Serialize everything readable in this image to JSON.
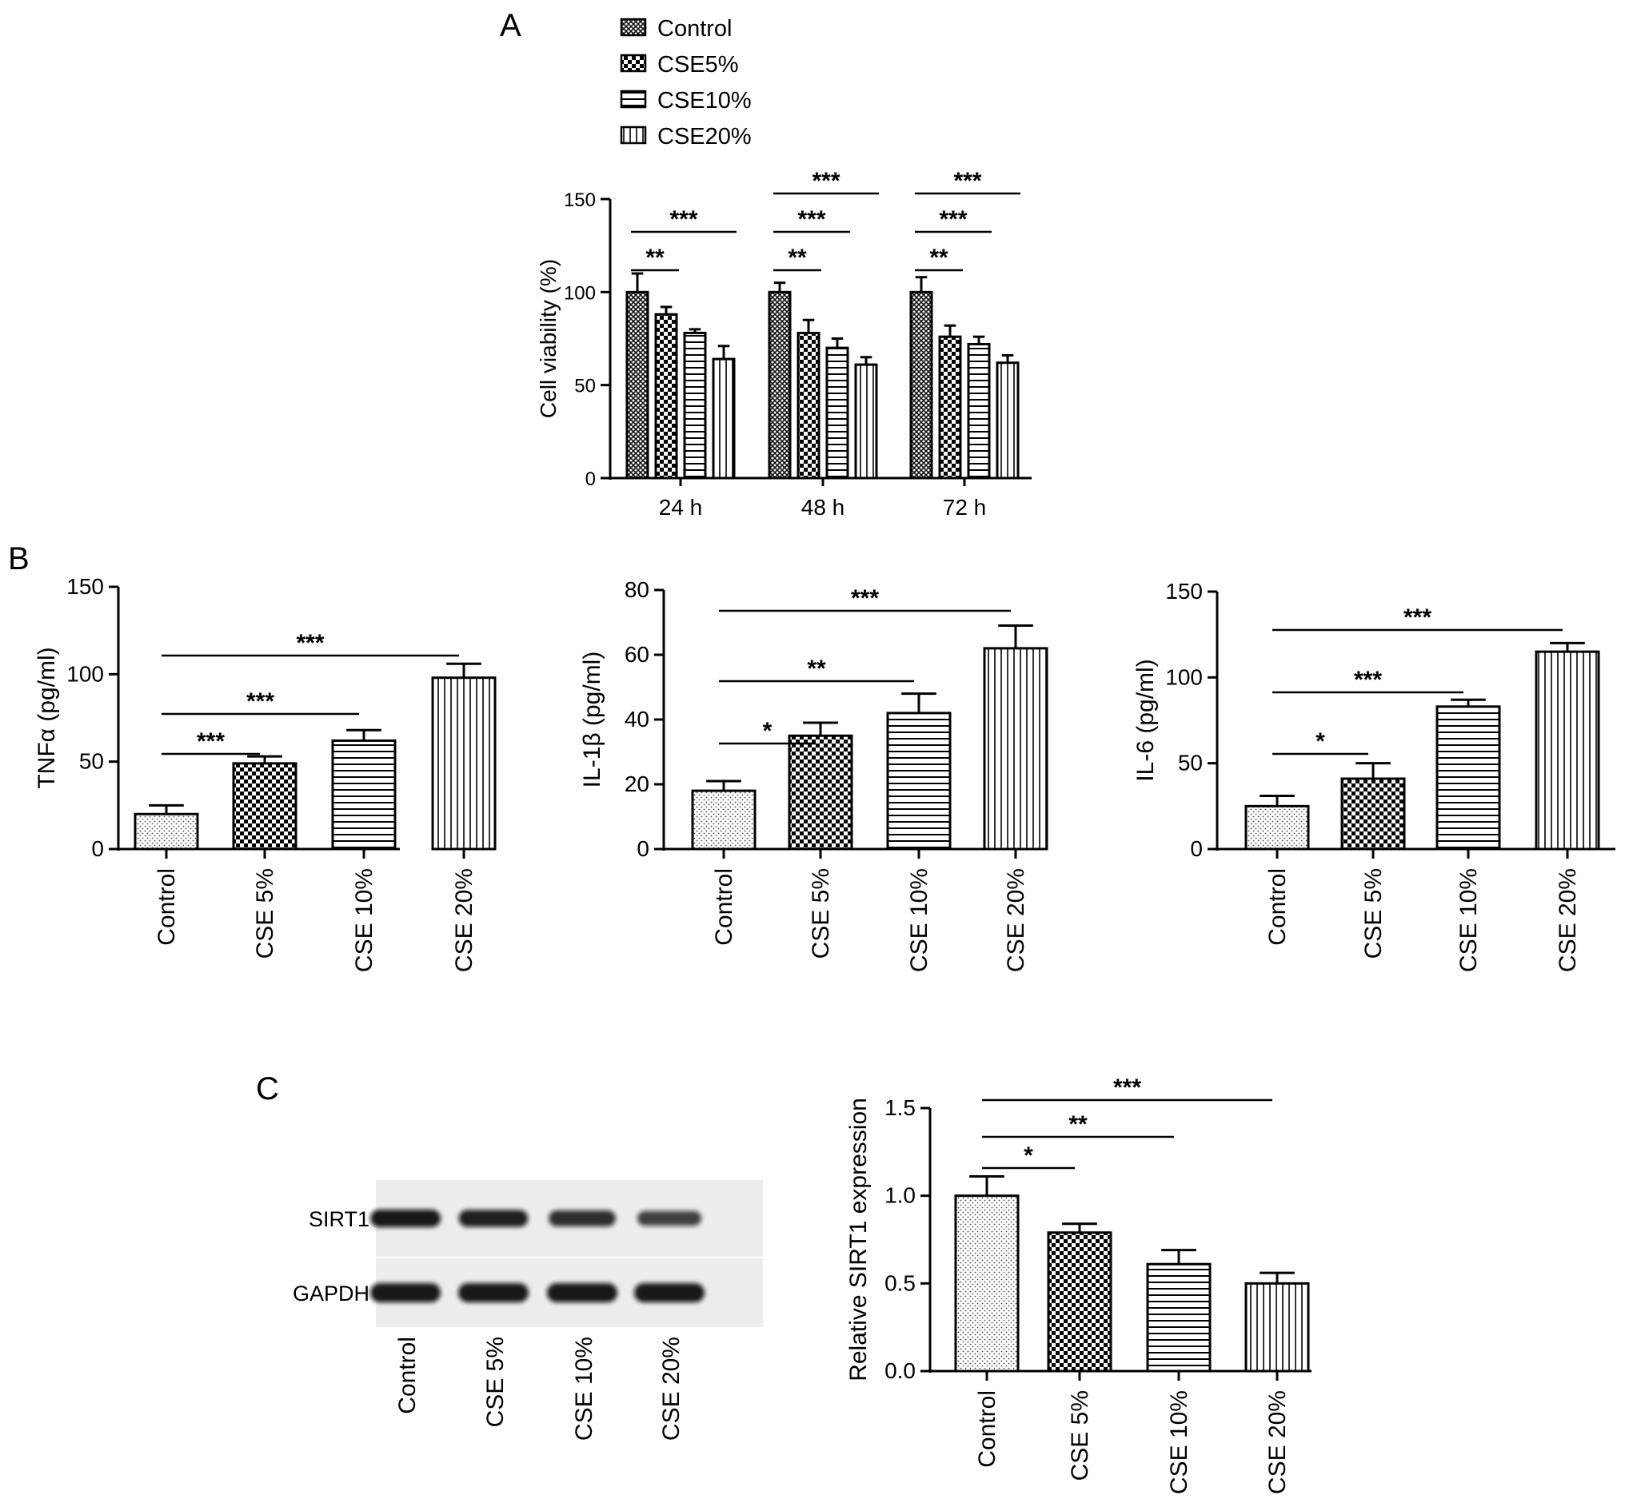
{
  "panels": {
    "A": "A",
    "B": "B",
    "C": "C"
  },
  "blot": {
    "bands": [
      "SIRT1",
      "GAPDH"
    ],
    "lanes": [
      "Control",
      "CSE 5%",
      "CSE 10%",
      "CSE 20%"
    ],
    "sirt1_band_intensity": [
      1.0,
      0.92,
      0.75,
      0.55
    ],
    "gapdh_band_intensity": [
      1.0,
      1.0,
      1.0,
      1.0
    ]
  },
  "chart_data": [
    {
      "id": "A",
      "type": "bar",
      "categories": [
        "24 h",
        "48 h",
        "72 h"
      ],
      "series": [
        {
          "name": "Control",
          "values": [
            100,
            100,
            100
          ],
          "errors": [
            10,
            5,
            8
          ],
          "pattern": "crosshatch"
        },
        {
          "name": "CSE5%",
          "values": [
            88,
            78,
            76
          ],
          "errors": [
            4,
            7,
            6
          ],
          "pattern": "checker"
        },
        {
          "name": "CSE10%",
          "values": [
            78,
            70,
            72
          ],
          "errors": [
            2,
            5,
            4
          ],
          "pattern": "horizontal"
        },
        {
          "name": "CSE20%",
          "values": [
            64,
            61,
            62
          ],
          "errors": [
            7,
            4,
            4
          ],
          "pattern": "vertical"
        }
      ],
      "xlabel": "",
      "ylabel": "Cell viability (%)",
      "ylim": [
        0,
        150
      ],
      "yticks": [
        0,
        50,
        100,
        150
      ],
      "legend": "top",
      "grid": false,
      "significance": [
        {
          "group": 0,
          "from": 0,
          "to": 1,
          "label": "**"
        },
        {
          "group": 0,
          "from": 0,
          "to": 3,
          "label": "***"
        },
        {
          "group": 1,
          "from": 0,
          "to": 1,
          "label": "**"
        },
        {
          "group": 1,
          "from": 0,
          "to": 2,
          "label": "***"
        },
        {
          "group": 1,
          "from": 0,
          "to": 3,
          "label": "***"
        },
        {
          "group": 2,
          "from": 0,
          "to": 1,
          "label": "**"
        },
        {
          "group": 2,
          "from": 0,
          "to": 2,
          "label": "***"
        },
        {
          "group": 2,
          "from": 0,
          "to": 3,
          "label": "***"
        }
      ]
    },
    {
      "id": "B1",
      "type": "bar",
      "categories": [
        "Control",
        "CSE 5%",
        "CSE 10%",
        "CSE 20%"
      ],
      "values": [
        20,
        49,
        62,
        98
      ],
      "errors": [
        5,
        4,
        6,
        8
      ],
      "ylabel": "TNFα (pg/ml)",
      "ylim": [
        0,
        150
      ],
      "yticks": [
        0,
        50,
        100,
        150
      ],
      "grid": false,
      "significance": [
        {
          "from": 0,
          "to": 1,
          "label": "***"
        },
        {
          "from": 0,
          "to": 2,
          "label": "***"
        },
        {
          "from": 0,
          "to": 3,
          "label": "***"
        }
      ]
    },
    {
      "id": "B2",
      "type": "bar",
      "categories": [
        "Control",
        "CSE 5%",
        "CSE 10%",
        "CSE 20%"
      ],
      "values": [
        18,
        35,
        42,
        62
      ],
      "errors": [
        3,
        4,
        6,
        7
      ],
      "ylabel": "IL-1β (pg/ml)",
      "ylim": [
        0,
        80
      ],
      "yticks": [
        0,
        20,
        40,
        60,
        80
      ],
      "grid": false,
      "significance": [
        {
          "from": 0,
          "to": 1,
          "label": "*"
        },
        {
          "from": 0,
          "to": 2,
          "label": "**"
        },
        {
          "from": 0,
          "to": 3,
          "label": "***"
        }
      ]
    },
    {
      "id": "B3",
      "type": "bar",
      "categories": [
        "Control",
        "CSE 5%",
        "CSE 10%",
        "CSE 20%"
      ],
      "values": [
        25,
        41,
        83,
        115
      ],
      "errors": [
        6,
        9,
        4,
        5
      ],
      "ylabel": "IL-6 (pg/ml)",
      "ylim": [
        0,
        150
      ],
      "yticks": [
        0,
        50,
        100,
        150
      ],
      "grid": false,
      "significance": [
        {
          "from": 0,
          "to": 1,
          "label": "*"
        },
        {
          "from": 0,
          "to": 2,
          "label": "***"
        },
        {
          "from": 0,
          "to": 3,
          "label": "***"
        }
      ]
    },
    {
      "id": "C",
      "type": "bar",
      "categories": [
        "Control",
        "CSE 5%",
        "CSE 10%",
        "CSE 20%"
      ],
      "values": [
        1.0,
        0.79,
        0.61,
        0.5
      ],
      "errors": [
        0.11,
        0.05,
        0.08,
        0.06
      ],
      "ylabel": "Relative SIRT1 expression",
      "ylim": [
        0,
        1.5
      ],
      "yticks": [
        "0.0",
        "0.5",
        "1.0",
        "1.5"
      ],
      "grid": false,
      "significance": [
        {
          "from": 0,
          "to": 1,
          "label": "*"
        },
        {
          "from": 0,
          "to": 2,
          "label": "**"
        },
        {
          "from": 0,
          "to": 3,
          "label": "***"
        }
      ]
    }
  ]
}
